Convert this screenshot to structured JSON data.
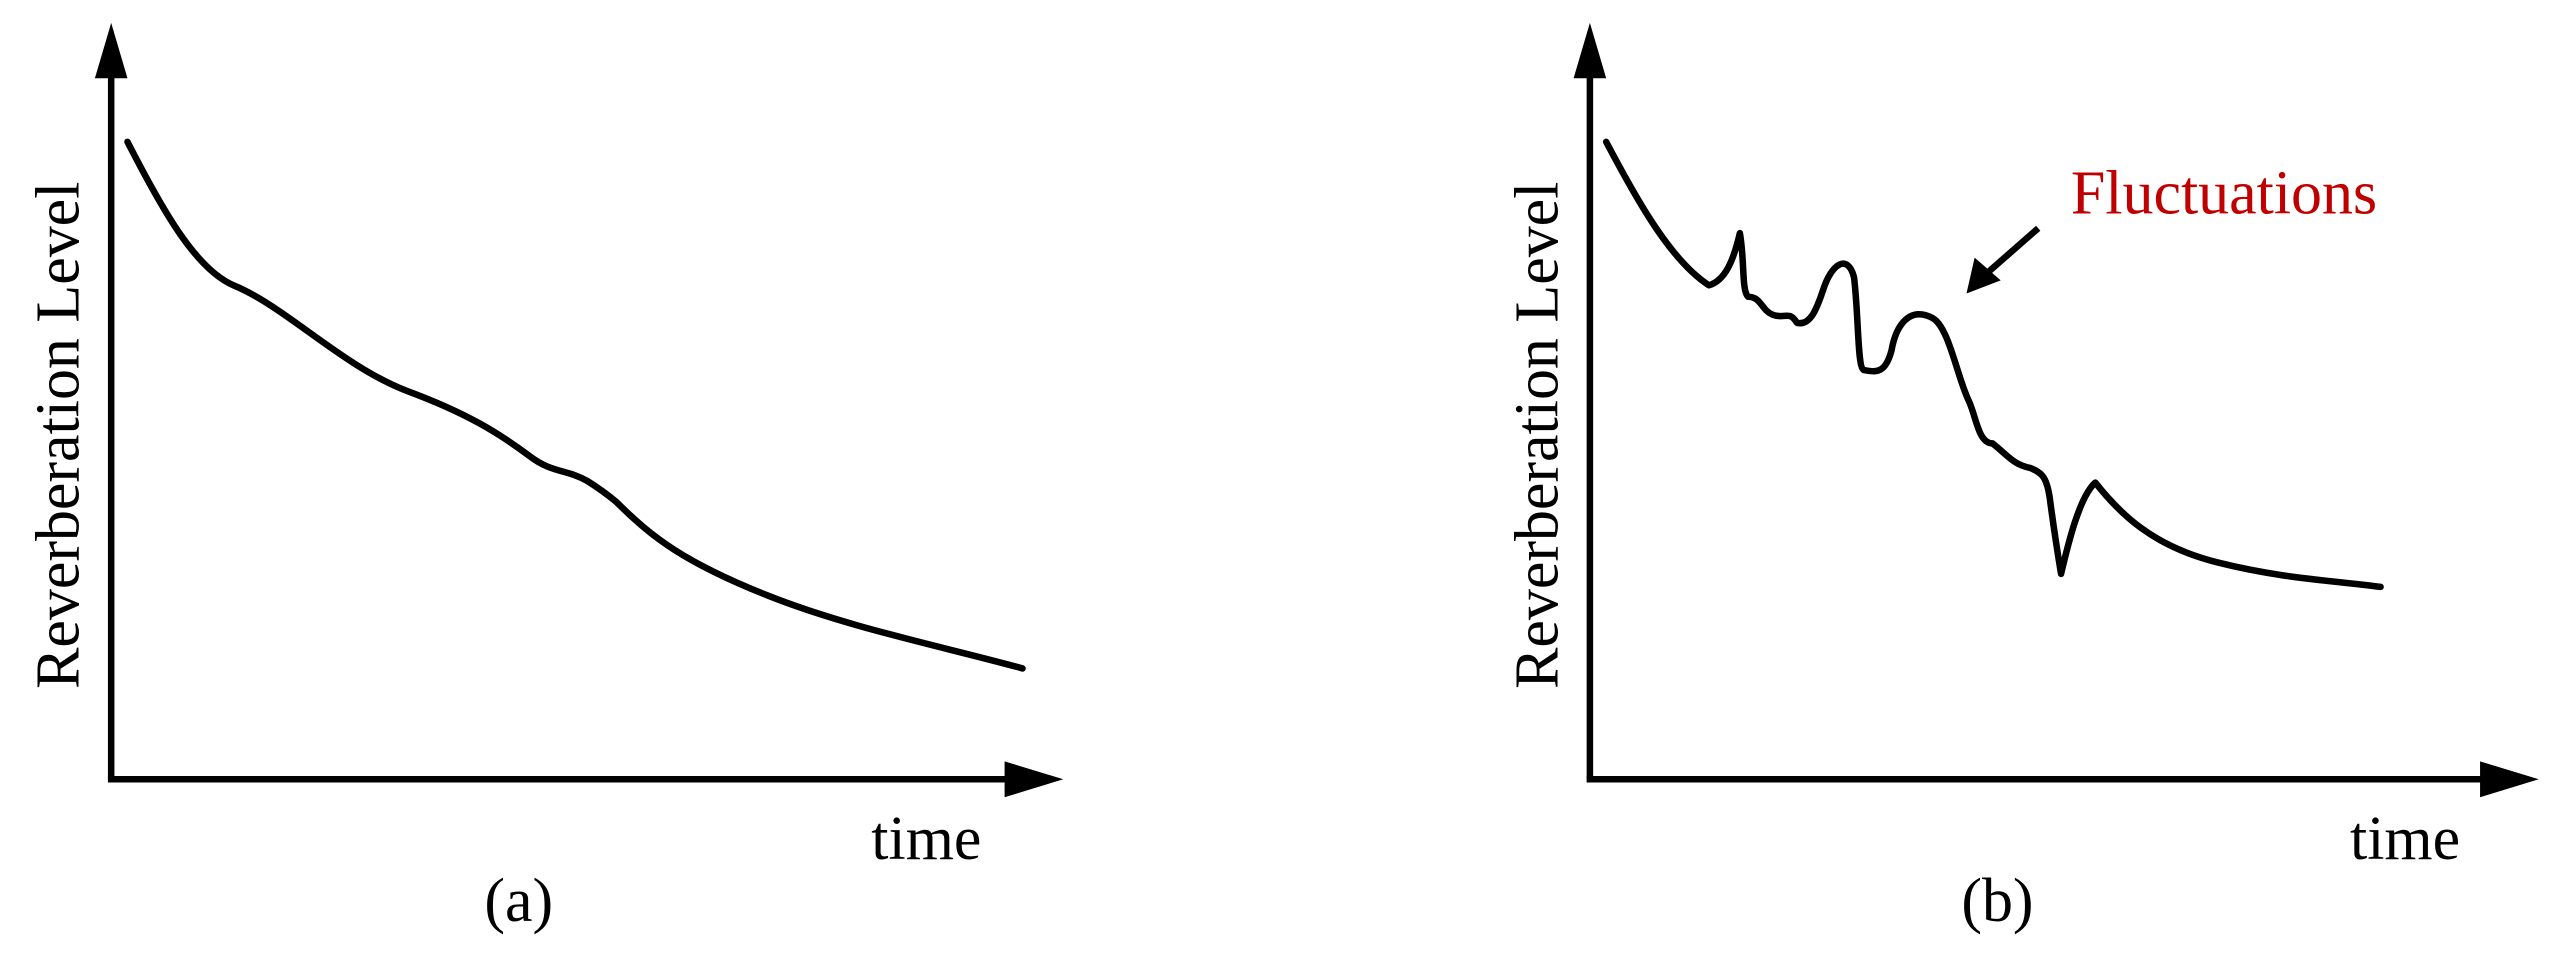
{
  "panels": [
    {
      "y_label": "Reverberation Level",
      "x_label": "time",
      "caption": "(a)"
    },
    {
      "y_label": "Reverberation Level",
      "x_label": "time",
      "caption": "(b)",
      "annotation": "Fluctuations"
    }
  ]
}
